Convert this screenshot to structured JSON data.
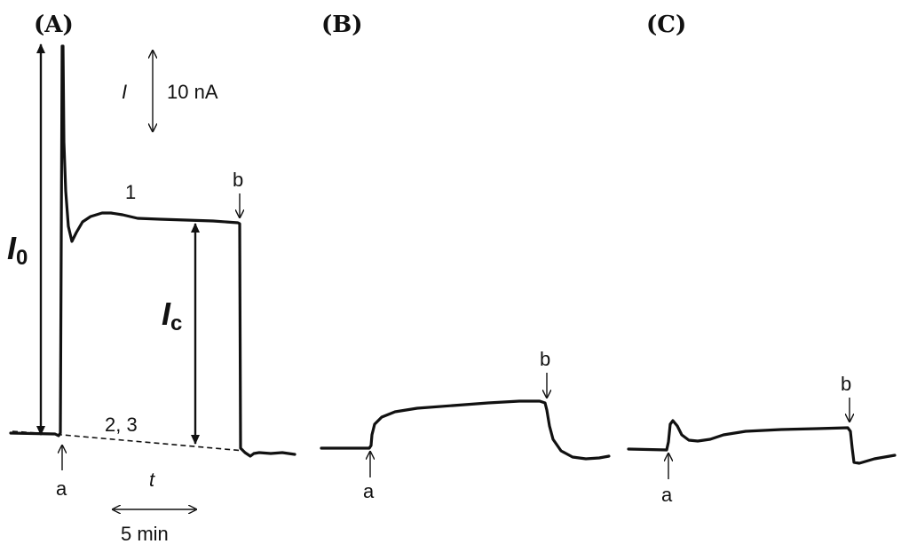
{
  "panels": {
    "A": {
      "label": "(A)"
    },
    "B": {
      "label": "(B)"
    },
    "C": {
      "label": "(C)"
    }
  },
  "scale_bars": {
    "current_symbol": "I",
    "current_value": "10 nA",
    "time_symbol": "t",
    "time_value": "5 min"
  },
  "annotations": {
    "I0_main": "I",
    "I0_sub": "0",
    "Ic_main": "I",
    "Ic_sub": "c",
    "curve_1": "1",
    "curve_2_3": "2, 3",
    "marker_a": "a",
    "marker_b": "b"
  }
}
